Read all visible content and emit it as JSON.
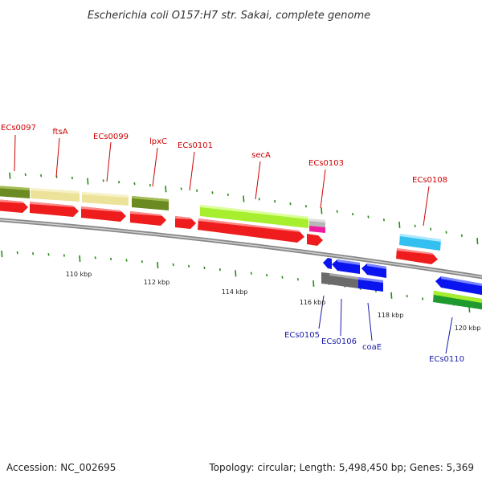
{
  "title": "Escherichia coli O157:H7 str. Sakai, complete genome",
  "footer": {
    "accession": "Accession: NC_002695",
    "topology": "Topology: circular; Length: 5,498,450 bp; Genes: 5,369"
  },
  "colors": {
    "backbone": "#8c8c8c",
    "tick": "#2a8a1a",
    "red": "#ee1c1c",
    "red_light": "#ff8a8a",
    "olive": "#6b8a22",
    "olive_light": "#a4bd54",
    "khaki": "#ece29a",
    "khaki_light": "#f8f1c6",
    "lime": "#a6ee2e",
    "lime_light": "#dcff9a",
    "grey_light": "#b8b8b8",
    "grey_dark": "#6b6b6b",
    "grey_dark_light": "#a8a8a8",
    "magenta": "#ee1ea0",
    "magenta_light": "#ff9ad2",
    "cyan": "#33c0f0",
    "cyan_light": "#aee8ff",
    "blue": "#0a14ee",
    "blue_light": "#7a86ff",
    "green": "#1e9a2e",
    "green_light": "#7cd88a",
    "label_red": "#cc0000",
    "label_blue": "#1a1aaa"
  },
  "ticks": [
    {
      "label": "110 kbp"
    },
    {
      "label": "112 kbp"
    },
    {
      "label": "114 kbp"
    },
    {
      "label": "116 kbp"
    },
    {
      "label": "118 kbp"
    },
    {
      "label": "120 kbp"
    }
  ],
  "top_labels": [
    {
      "text": "ECs0097"
    },
    {
      "text": "ftsA"
    },
    {
      "text": "ECs0099"
    },
    {
      "text": "lpxC"
    },
    {
      "text": "ECs0101"
    },
    {
      "text": "secA"
    },
    {
      "text": "ECs0103"
    },
    {
      "text": "ECs0108"
    }
  ],
  "bottom_labels": [
    {
      "text": "ECs0105"
    },
    {
      "text": "ECs0106"
    },
    {
      "text": "coaE"
    },
    {
      "text": "ECs0110"
    }
  ]
}
